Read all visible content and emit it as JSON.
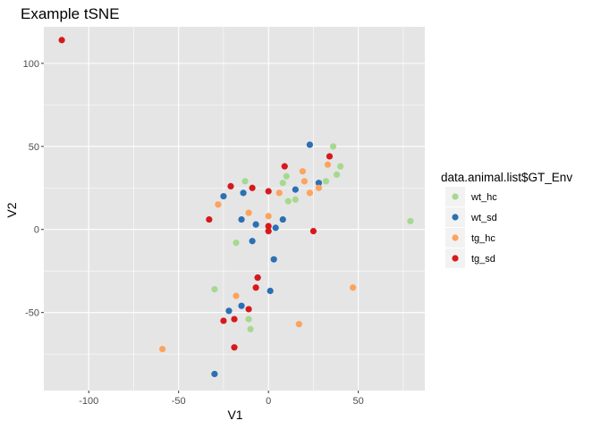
{
  "chart_data": {
    "type": "scatter",
    "title": "Example tSNE",
    "xlabel": "V1",
    "ylabel": "V2",
    "xlim": [
      -125,
      87
    ],
    "ylim": [
      -97,
      122
    ],
    "x_ticks": [
      -100,
      -50,
      0,
      50
    ],
    "y_ticks": [
      -50,
      0,
      50,
      100
    ],
    "grid": true,
    "legend_position": "right",
    "legend_title": "data.animal.list$GT_Env",
    "colors": {
      "panel_bg": "#e5e5e5",
      "grid": "#ffffff"
    },
    "series": [
      {
        "name": "wt_hc",
        "color": "#a6d98f",
        "points": [
          {
            "x": 79,
            "y": 5
          },
          {
            "x": 36,
            "y": 50
          },
          {
            "x": 40,
            "y": 38
          },
          {
            "x": 38,
            "y": 33
          },
          {
            "x": 32,
            "y": 29
          },
          {
            "x": 10,
            "y": 32
          },
          {
            "x": 8,
            "y": 28
          },
          {
            "x": 11,
            "y": 17
          },
          {
            "x": 15,
            "y": 18
          },
          {
            "x": -13,
            "y": 29
          },
          {
            "x": -18,
            "y": -8
          },
          {
            "x": -30,
            "y": -36
          },
          {
            "x": -11,
            "y": -54
          },
          {
            "x": -10,
            "y": -60
          }
        ]
      },
      {
        "name": "wt_sd",
        "color": "#2b70b3",
        "points": [
          {
            "x": 23,
            "y": 51
          },
          {
            "x": 28,
            "y": 28
          },
          {
            "x": 15,
            "y": 24
          },
          {
            "x": -25,
            "y": 20
          },
          {
            "x": -14,
            "y": 22
          },
          {
            "x": -15,
            "y": 6
          },
          {
            "x": -7,
            "y": 3
          },
          {
            "x": 8,
            "y": 6
          },
          {
            "x": 4,
            "y": 1
          },
          {
            "x": -9,
            "y": -7
          },
          {
            "x": 3,
            "y": -18
          },
          {
            "x": -6,
            "y": -29
          },
          {
            "x": 1,
            "y": -37
          },
          {
            "x": -15,
            "y": -46
          },
          {
            "x": -22,
            "y": -49
          },
          {
            "x": -30,
            "y": -87
          }
        ]
      },
      {
        "name": "tg_hc",
        "color": "#fca35d",
        "points": [
          {
            "x": 33,
            "y": 39
          },
          {
            "x": 19,
            "y": 35
          },
          {
            "x": 20,
            "y": 29
          },
          {
            "x": 28,
            "y": 25
          },
          {
            "x": 23,
            "y": 22
          },
          {
            "x": 6,
            "y": 22
          },
          {
            "x": -28,
            "y": 15
          },
          {
            "x": -11,
            "y": 10
          },
          {
            "x": 0,
            "y": 8
          },
          {
            "x": 47,
            "y": -35
          },
          {
            "x": -18,
            "y": -40
          },
          {
            "x": 17,
            "y": -57
          },
          {
            "x": -59,
            "y": -72
          }
        ]
      },
      {
        "name": "tg_sd",
        "color": "#d7191c",
        "points": [
          {
            "x": -115,
            "y": 114
          },
          {
            "x": 34,
            "y": 44
          },
          {
            "x": 9,
            "y": 38
          },
          {
            "x": -21,
            "y": 26
          },
          {
            "x": -9,
            "y": 25
          },
          {
            "x": 0,
            "y": 23
          },
          {
            "x": -33,
            "y": 6
          },
          {
            "x": 0,
            "y": 2
          },
          {
            "x": 0,
            "y": -1
          },
          {
            "x": 25,
            "y": -1
          },
          {
            "x": -6,
            "y": -29
          },
          {
            "x": -7,
            "y": -35
          },
          {
            "x": -11,
            "y": -48
          },
          {
            "x": -19,
            "y": -54
          },
          {
            "x": -25,
            "y": -55
          },
          {
            "x": -19,
            "y": -71
          }
        ]
      }
    ]
  }
}
